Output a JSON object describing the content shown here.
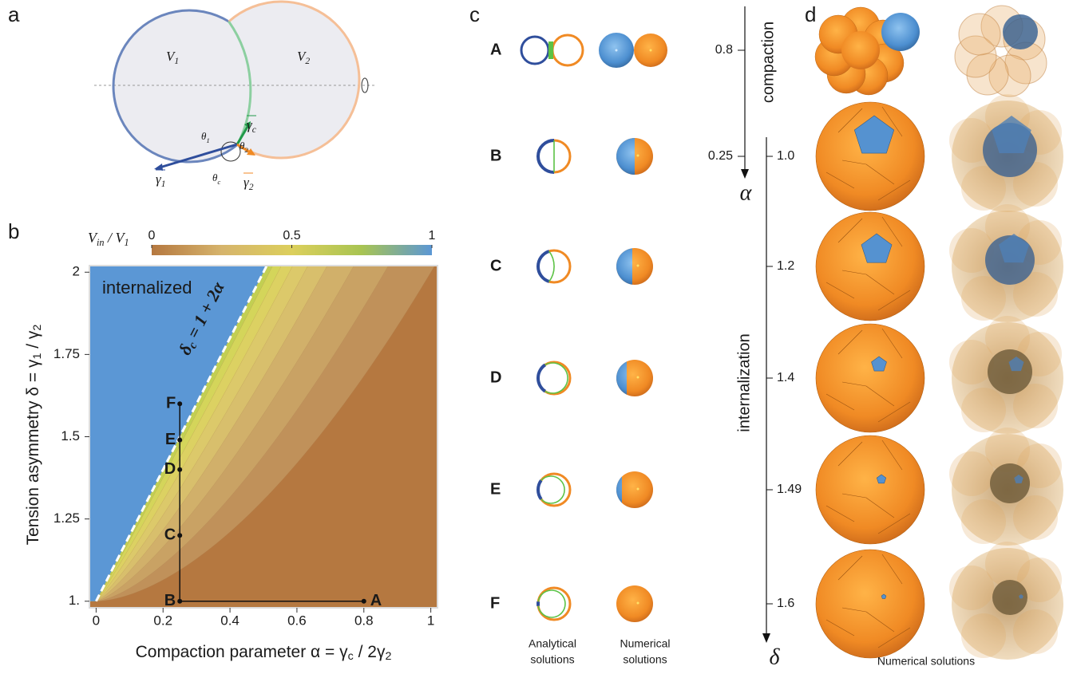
{
  "panel_a": {
    "label": "a",
    "volumes": [
      [
        "V",
        "1"
      ],
      [
        "V",
        "2"
      ]
    ],
    "angles": [
      [
        "θ",
        "1"
      ],
      [
        "θ",
        "2"
      ],
      [
        "θ",
        "c"
      ]
    ],
    "tensions": [
      [
        "γ",
        "1"
      ],
      [
        "γ",
        "2"
      ],
      [
        "γ",
        "c"
      ]
    ]
  },
  "chart_data": {
    "type": "contour",
    "panel_label": "b",
    "xlim": [
      -0.02,
      1.02
    ],
    "ylim": [
      0.98,
      2.02
    ],
    "xticks": [
      0,
      0.2,
      0.4,
      0.6,
      0.8,
      1
    ],
    "yticks": [
      {
        "value": 1,
        "label": "1."
      },
      1.25,
      1.5,
      1.75,
      2
    ],
    "x_label": [
      "Compaction parameter  α = γ",
      "c",
      " / 2γ",
      "2"
    ],
    "y_label": [
      "Tension asymmetry  δ = γ",
      "1",
      " / γ",
      "2"
    ],
    "colorbar": {
      "label": [
        "V",
        "in",
        " / V",
        "1"
      ],
      "ticks": [
        0,
        0.5,
        1
      ],
      "colors": [
        "#b57840",
        "#d6b46c",
        "#dccf5c",
        "#a8c452",
        "#5b97d5"
      ]
    },
    "region_label": "internalized",
    "region_color": "#5b97d5",
    "background_color": "#b57840",
    "critical_line": {
      "label": [
        "δ",
        "c",
        " = 1 + 2α"
      ],
      "intercept": 1,
      "slope": 2
    },
    "points": {
      "labels": [
        "A",
        "B",
        "C",
        "D",
        "E",
        "F"
      ],
      "x": [
        0.8,
        0.25,
        0.25,
        0.25,
        0.25,
        0.25
      ],
      "y": [
        1,
        1,
        1.2,
        1.4,
        1.49,
        1.6
      ]
    }
  },
  "panel_c": {
    "label": "c",
    "rows": [
      "A",
      "B",
      "C",
      "D",
      "E",
      "F"
    ],
    "alpha_axis": {
      "symbol": "α",
      "title": "compaction",
      "ticks": [
        0.8,
        0.25
      ]
    },
    "delta_axis": {
      "symbol": "δ",
      "title": "internalization",
      "ticks": [
        {
          "value": 1,
          "label": "1.0"
        },
        1.2,
        1.4,
        1.49,
        1.6
      ]
    },
    "captions": [
      [
        "Analytical",
        "solutions"
      ],
      [
        "Numerical",
        "solutions"
      ]
    ]
  },
  "panel_d": {
    "label": "d",
    "caption": "Numerical solutions"
  }
}
